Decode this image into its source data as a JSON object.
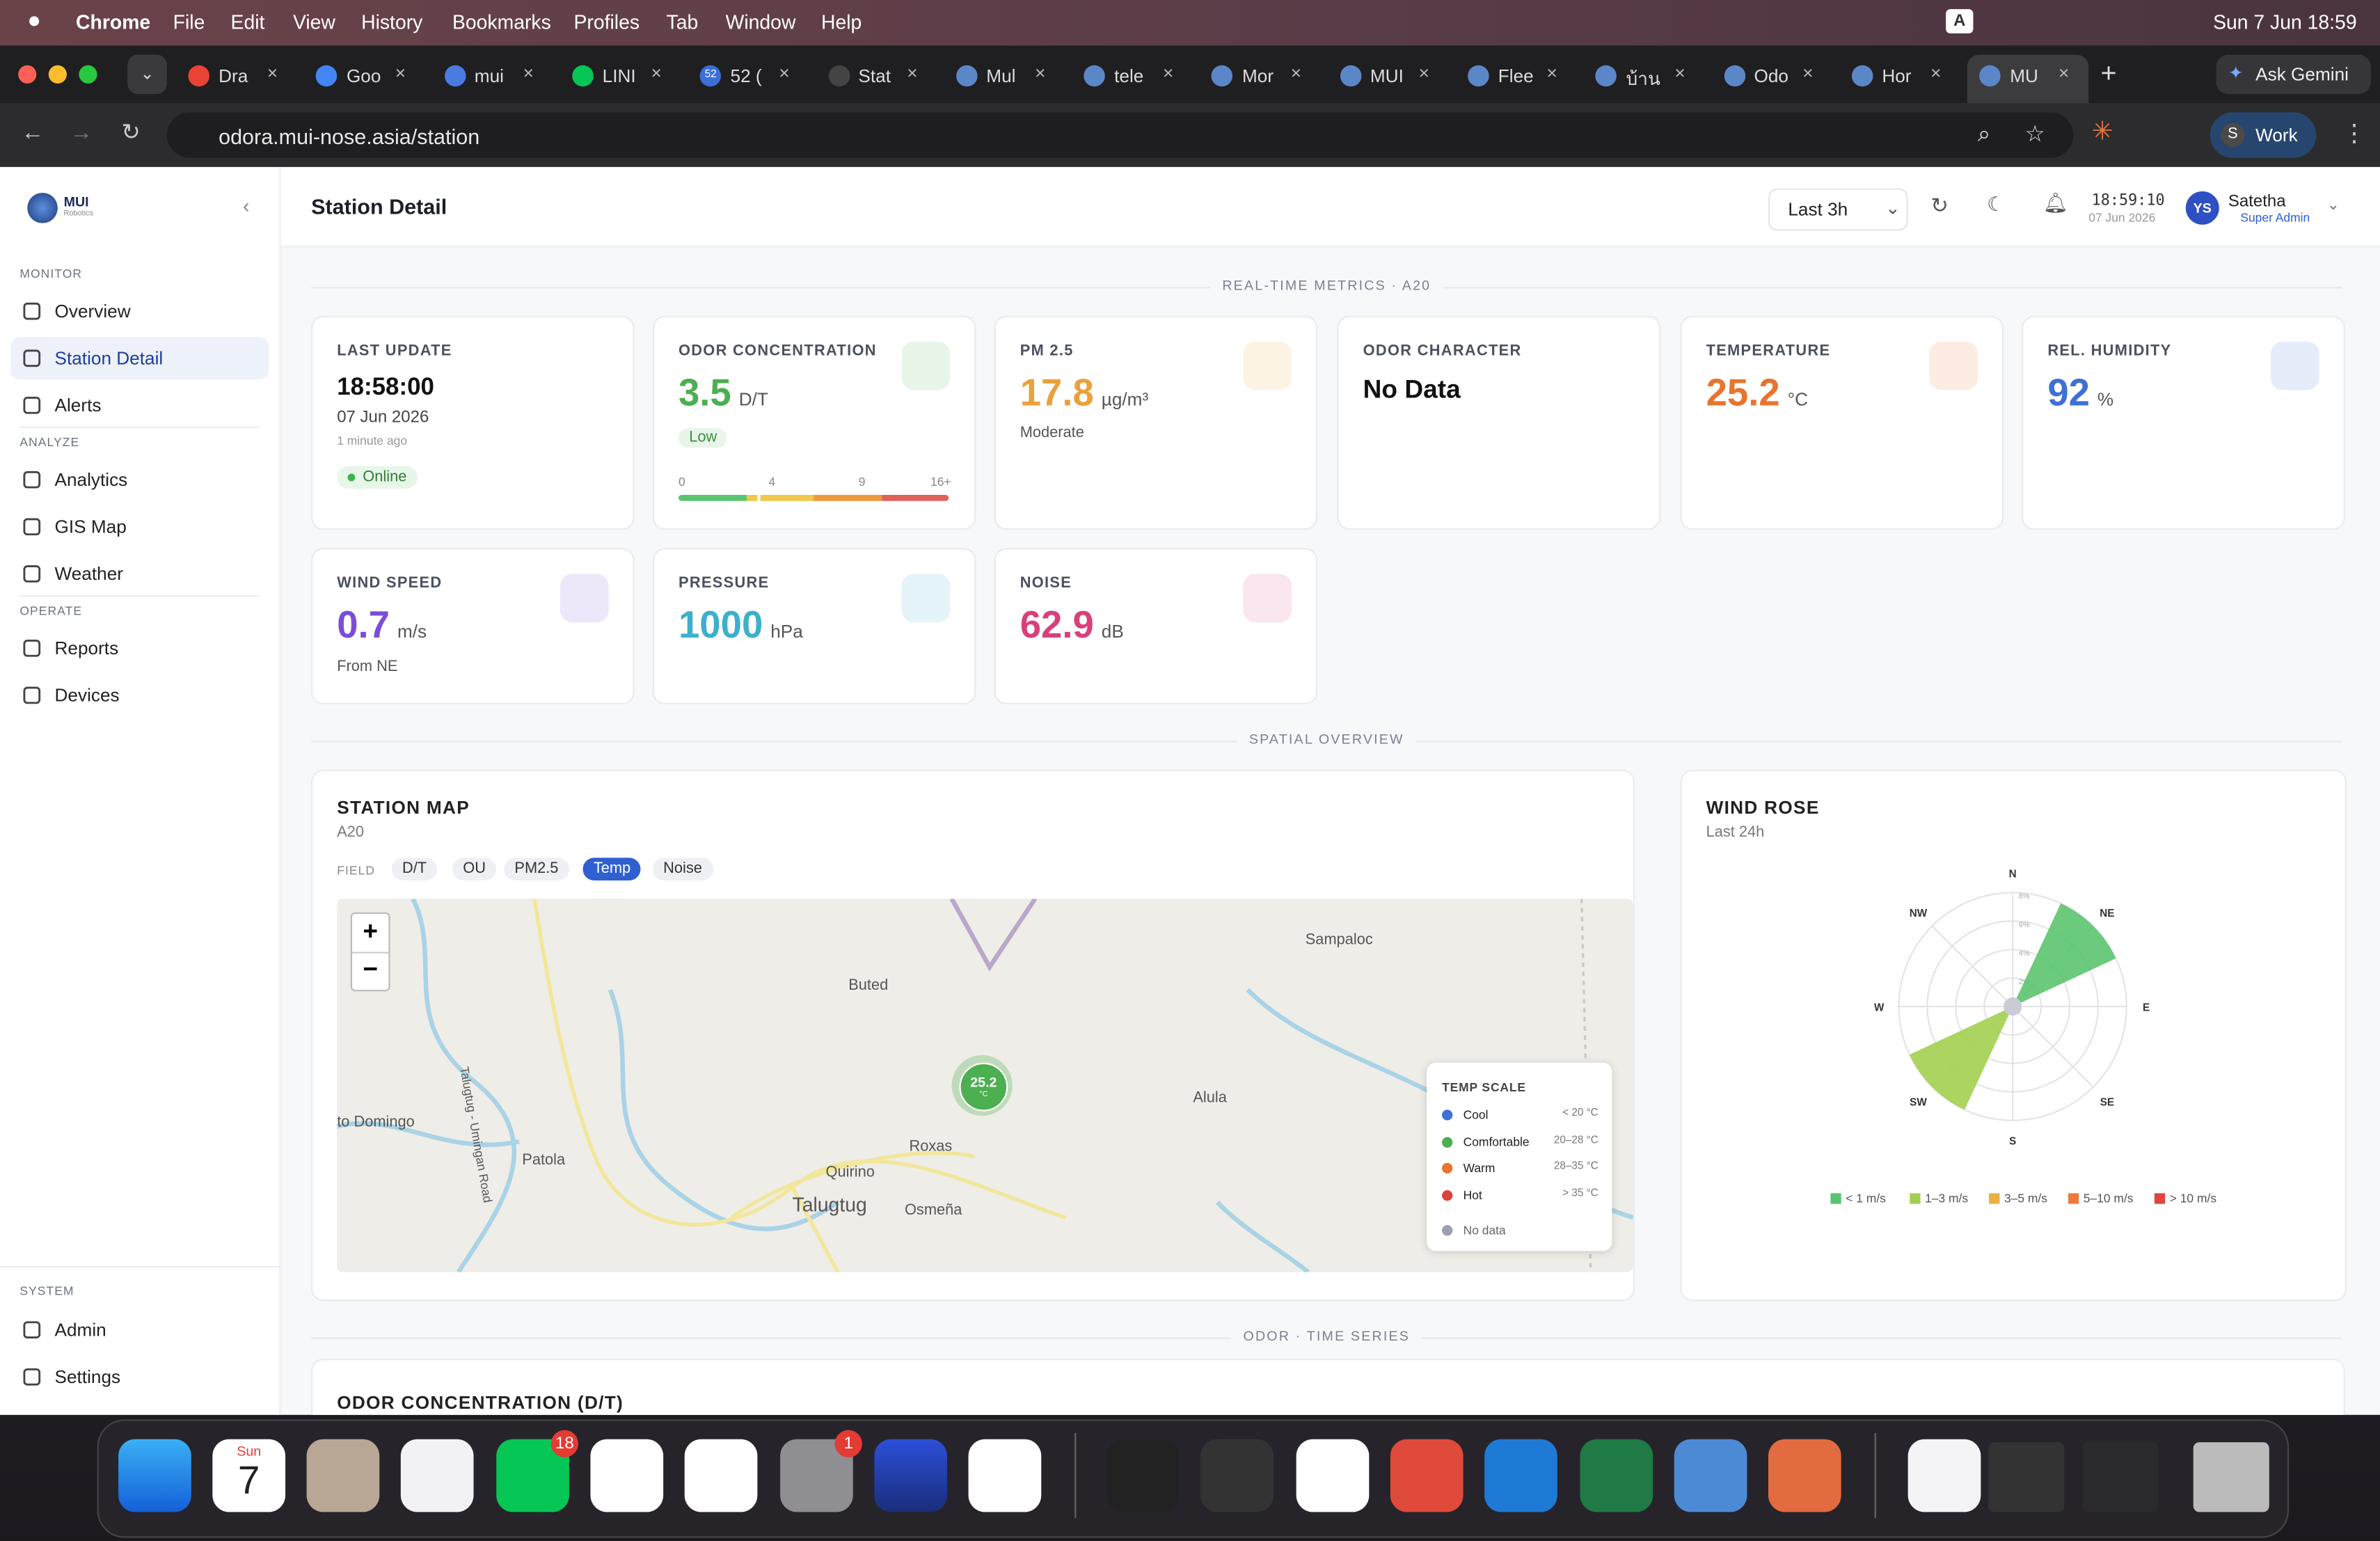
{
  "menubar": {
    "app": "Chrome",
    "menus": [
      "File",
      "Edit",
      "View",
      "History",
      "Bookmarks",
      "Profiles",
      "Tab",
      "Window",
      "Help"
    ],
    "input_source": "A",
    "clock": "Sun 7 Jun  18:59"
  },
  "browser": {
    "tabs": [
      "Dra",
      "Goo",
      "mui",
      "LINI",
      "52 (",
      "Stat",
      "Mul",
      "tele",
      "Mor",
      "MUI",
      "Flee",
      "บ้าน",
      "Odo",
      "Hor",
      "MU"
    ],
    "tab_badge": "52",
    "ask": "Ask Gemini",
    "url": "odora.mui-nose.asia/station",
    "profile_initial": "S",
    "profile": "Work"
  },
  "sidebar": {
    "brand": "MUI",
    "brand_sub": "Robotics",
    "sections": [
      {
        "title": "MONITOR",
        "items": [
          "Overview",
          "Station Detail",
          "Alerts"
        ]
      },
      {
        "title": "ANALYZE",
        "items": [
          "Analytics",
          "GIS Map",
          "Weather"
        ]
      },
      {
        "title": "OPERATE",
        "items": [
          "Reports",
          "Devices"
        ]
      }
    ],
    "system": {
      "title": "SYSTEM",
      "items": [
        "Admin",
        "Settings"
      ]
    }
  },
  "header": {
    "title": "Station Detail",
    "range": "Last 3h",
    "time": "18:59:10",
    "date": "07 Jun 2026",
    "initials": "YS",
    "user": "Satetha",
    "role": "Super Admin"
  },
  "dividers": [
    "REAL-TIME METRICS · A20",
    "SPATIAL OVERVIEW",
    "ODOR · TIME SERIES"
  ],
  "last_update": {
    "label": "LAST UPDATE",
    "time": "18:58:00",
    "date": "07 Jun 2026",
    "ago": "1 minute ago",
    "status": "Online"
  },
  "odor": {
    "label": "ODOR CONCENTRATION",
    "value": 3.5,
    "unit": "D/T",
    "level": "Low",
    "scale_ticks": [
      0,
      4,
      9,
      {
        "value": 16,
        "label": "16+"
      }
    ]
  },
  "metrics": [
    {
      "label": "PM 2.5",
      "value": 17.8,
      "unit": "µg/m³",
      "sub": "Moderate",
      "color": "#e9a23b"
    },
    {
      "label": "ODOR CHARACTER",
      "text": "No Data"
    },
    {
      "label": "TEMPERATURE",
      "value": 25.2,
      "unit": "°C",
      "color": "#e8742e"
    },
    {
      "label": "REL. HUMIDITY",
      "value": 92,
      "unit": "%",
      "color": "#3f6fd8"
    },
    {
      "label": "WIND SPEED",
      "value": 0.7,
      "unit": "m/s",
      "sub": "From NE",
      "color": "#7b4ddb"
    },
    {
      "label": "PRESSURE",
      "value": 1000,
      "unit": "hPa",
      "color": "#3cb0cc"
    },
    {
      "label": "NOISE",
      "value": 62.9,
      "unit": "dB",
      "color": "#d8407c"
    }
  ],
  "map": {
    "title": "STATION MAP",
    "station": "A20",
    "field_label": "FIELD",
    "fields": [
      "D/T",
      "OU",
      "PM2.5",
      "Temp",
      "Noise"
    ],
    "active_field": 3,
    "zoom_in": "+",
    "zoom_out": "−",
    "places": [
      "Sampaloc",
      "Buted",
      "Alula",
      "to Domingo",
      "Patola",
      "Roxas",
      "Quirino",
      "Talugtug",
      "Osmeña",
      "Talugtug - Umingan Road"
    ],
    "marker_value": 25.2,
    "marker_unit": "°C",
    "legend_title": "TEMP SCALE",
    "legend": [
      {
        "name": "Cool",
        "range": "< 20 °C",
        "color": "#3f6fd8"
      },
      {
        "name": "Comfortable",
        "range": "20–28 °C",
        "color": "#4caf50"
      },
      {
        "name": "Warm",
        "range": "28–35 °C",
        "color": "#e8742e"
      },
      {
        "name": "Hot",
        "range": "> 35 °C",
        "color": "#d9443c"
      },
      {
        "name": "No data",
        "color": "#9aa0ad"
      }
    ]
  },
  "wind_rose": {
    "title": "WIND ROSE",
    "period": "Last 24h",
    "directions": [
      "N",
      "NE",
      "E",
      "SE",
      "S",
      "SW",
      "W",
      "NW"
    ],
    "rlim": [
      0,
      8
    ],
    "rticks": [
      {
        "value": 2,
        "label": "2%"
      },
      {
        "value": 4,
        "label": "4%"
      },
      {
        "value": 6,
        "label": "6%"
      },
      {
        "value": 8,
        "label": "8%"
      }
    ],
    "series": [
      {
        "name": "< 1 m/s",
        "color": "#5bc46e",
        "values": [
          0,
          8,
          0,
          0,
          0,
          0,
          0,
          0
        ]
      },
      {
        "name": "1–3 m/s",
        "color": "#a3cf4f",
        "values": [
          0,
          0,
          0,
          0,
          0,
          8,
          0,
          0
        ]
      },
      {
        "name": "3–5 m/s",
        "color": "#e9b040",
        "values": [
          0,
          0,
          0,
          0,
          0,
          0,
          0,
          0
        ]
      },
      {
        "name": "5–10 m/s",
        "color": "#ec7a3a",
        "values": [
          0,
          0,
          0,
          0,
          0,
          0,
          0,
          0
        ]
      },
      {
        "name": "> 10 m/s",
        "color": "#e0443c",
        "values": [
          0,
          0,
          0,
          0,
          0,
          0,
          0,
          0
        ]
      }
    ]
  },
  "timeseries": {
    "title": "ODOR CONCENTRATION (D/T)"
  },
  "dock": {
    "calendar_day": "Sun",
    "calendar_date": "7",
    "line_badge": "18",
    "settings_badge": "1"
  }
}
